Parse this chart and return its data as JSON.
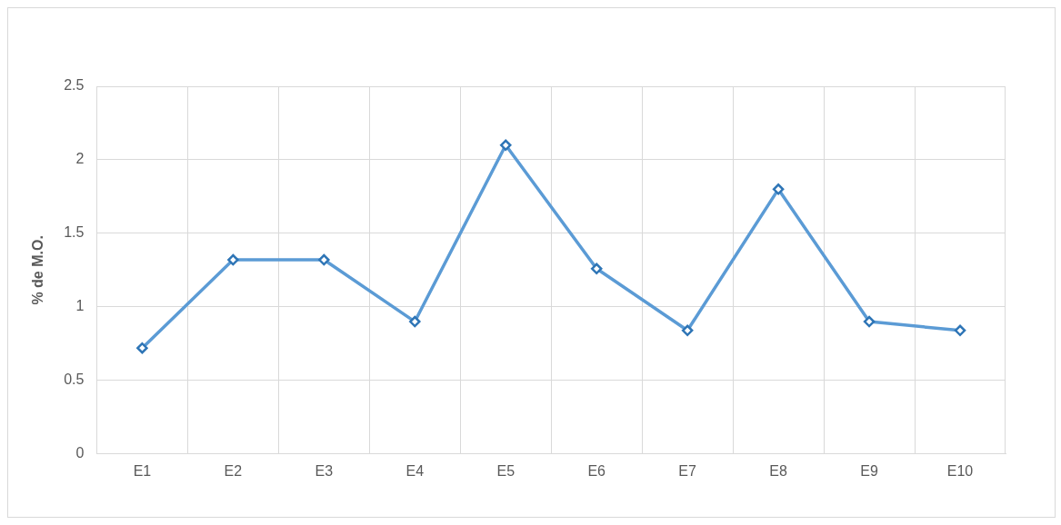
{
  "chart_data": {
    "type": "line",
    "ylabel": "% de M.O.",
    "categories": [
      "E1",
      "E2",
      "E3",
      "E4",
      "E5",
      "E6",
      "E7",
      "E8",
      "E9",
      "E10"
    ],
    "series": [
      {
        "color": "#5b9bd5",
        "values": [
          0.72,
          1.32,
          1.32,
          0.9,
          2.1,
          1.26,
          0.84,
          1.8,
          0.9,
          0.84
        ]
      }
    ],
    "ylim": [
      0,
      2.5
    ],
    "yticks": [
      0,
      0.5,
      1,
      1.5,
      2,
      2.5
    ],
    "grid": true,
    "legend": false,
    "marker": "diamond",
    "line_style": "solid"
  }
}
